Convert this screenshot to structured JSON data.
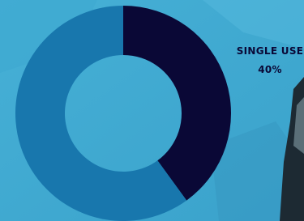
{
  "chart_data": {
    "type": "donut",
    "categories": [
      "SINGLE USE",
      null
    ],
    "values": [
      40,
      60
    ],
    "value_labels": [
      "40%",
      null
    ],
    "colors": [
      "#0a0836",
      "#1877ad"
    ]
  }
}
